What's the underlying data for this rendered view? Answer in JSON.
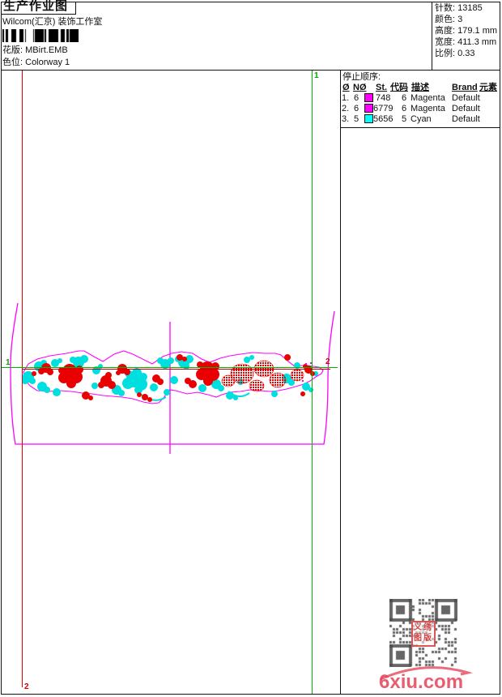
{
  "header": {
    "title": "生产作业图",
    "studio": "Wilcom(汇京) 装饰工作室",
    "design_label": "花版:",
    "design_value": "MBirt.EMB",
    "colorway_label": "色位:",
    "colorway_value": "Colorway 1"
  },
  "stats": {
    "stitches_label": "针数:",
    "stitches_value": "13185",
    "colors_label": "颜色:",
    "colors_value": "3",
    "height_label": "高度:",
    "height_value": "179.1 mm",
    "width_label": "宽度:",
    "width_value": "411.3 mm",
    "scale_label": "比例:",
    "scale_value": "0.33"
  },
  "stop_sequence": {
    "title": "停止顺序:",
    "columns": {
      "c0": "Ø",
      "c1": "NØ",
      "c2": "St.",
      "c3": "代码",
      "c4": "描述",
      "c5": "Brand",
      "c6": "元素"
    },
    "rows": [
      {
        "no": "1.",
        "needle": "6",
        "swatch": "#ff00ff",
        "st": "748",
        "code": "6",
        "desc": "Magenta",
        "brand": "Default",
        "element": ""
      },
      {
        "no": "2.",
        "needle": "6",
        "swatch": "#ff00ff",
        "st": "6779",
        "code": "6",
        "desc": "Magenta",
        "brand": "Default",
        "element": ""
      },
      {
        "no": "3.",
        "needle": "5",
        "swatch": "#00ffff",
        "st": "5656",
        "code": "5",
        "desc": "Cyan",
        "brand": "Default",
        "element": ""
      }
    ]
  },
  "canvas_markers": {
    "start_label": "1",
    "end_label": "2",
    "guide_magenta": "#ff00ff",
    "start_green": "#00b400",
    "end_red": "#d40000",
    "design_red": "#ea0000",
    "design_cyan": "#00dfdf"
  },
  "watermark": {
    "logo_text": "6xiu.com",
    "stamp_chars": [
      "义",
      "绣",
      "图",
      "版"
    ]
  }
}
